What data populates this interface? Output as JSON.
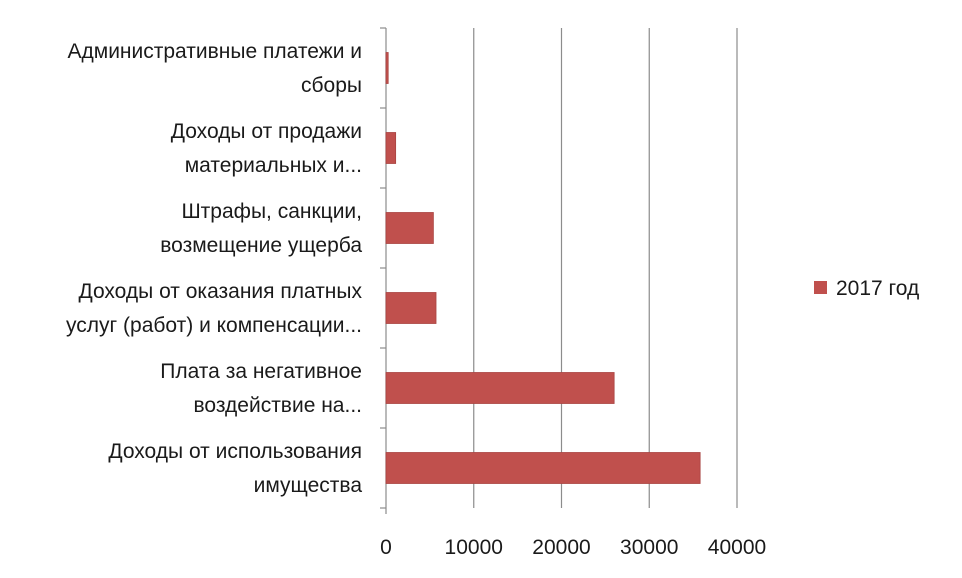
{
  "colors": {
    "bar": "#c0504d",
    "bar_edge": "#a94442",
    "grid": "#8c8c8c",
    "axis": "#8c8c8c",
    "text": "#1a1a1a"
  },
  "chart_data": {
    "type": "bar",
    "orientation": "horizontal",
    "categories": [
      [
        "Административные платежи и",
        "сборы"
      ],
      [
        "Доходы от продажи",
        "материальных и..."
      ],
      [
        "Штрафы, санкции,",
        "возмещение ущерба"
      ],
      [
        "Доходы от оказания платных",
        "услуг (работ) и компенсации..."
      ],
      [
        "Плата за негативное",
        "воздействие на..."
      ],
      [
        "Доходы от использования",
        "имущества"
      ]
    ],
    "series": [
      {
        "name": "2017 год",
        "values": [
          250,
          1100,
          5400,
          5700,
          26000,
          35800
        ]
      }
    ],
    "xlim": [
      0,
      40000
    ],
    "xticks": [
      "0",
      "10000",
      "20000",
      "30000",
      "40000"
    ],
    "grid": true,
    "legend": "right",
    "title": "",
    "xlabel": "",
    "ylabel": ""
  }
}
